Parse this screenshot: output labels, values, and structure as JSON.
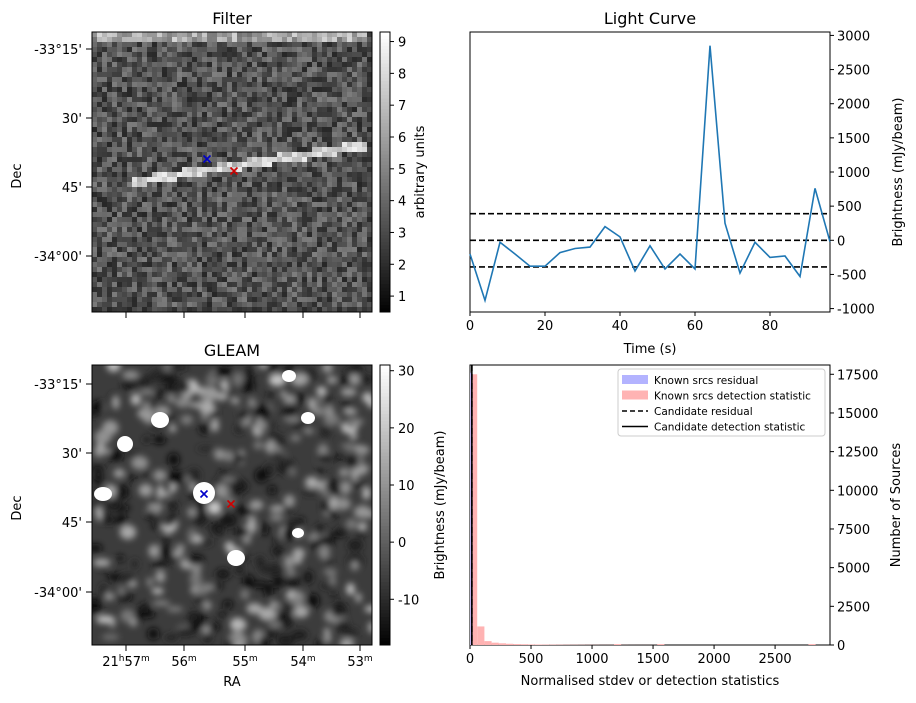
{
  "chart_data": [
    {
      "type": "heatmap",
      "title": "Filter",
      "ylabel": "Dec",
      "y_ticks": [
        "-33°15'",
        "30'",
        "45'",
        "-34°00'"
      ],
      "colorbar": {
        "label": "arbitrary units",
        "ticks": [
          "1",
          "2",
          "3",
          "4",
          "5",
          "6",
          "7",
          "8",
          "9"
        ],
        "range": [
          0.5,
          9.3
        ]
      },
      "markers": [
        {
          "symbol": "x",
          "color": "#0000c8"
        },
        {
          "symbol": "x",
          "color": "#d00000"
        }
      ]
    },
    {
      "type": "line",
      "title": "Light Curve",
      "xlabel": "Time (s)",
      "ylabel": "Brightness (mJy/beam)",
      "xlim": [
        0,
        96
      ],
      "ylim": [
        -1050,
        3050
      ],
      "x_ticks": [
        "0",
        "20",
        "40",
        "60",
        "80"
      ],
      "y_ticks": [
        "3000",
        "2500",
        "2000",
        "1500",
        "1000",
        "500",
        "0",
        "-500",
        "-1000"
      ],
      "series": [
        {
          "x": [
            0,
            4,
            8,
            12,
            16,
            20,
            24,
            28,
            32,
            36,
            40,
            44,
            48,
            52,
            56,
            60,
            64,
            68,
            72,
            76,
            80,
            84,
            88,
            92,
            96
          ],
          "y": [
            -200,
            -880,
            -30,
            -200,
            -380,
            -380,
            -180,
            -120,
            -100,
            200,
            50,
            -450,
            -80,
            -420,
            -200,
            -420,
            2850,
            250,
            -480,
            -30,
            -250,
            -230,
            -530,
            760,
            -20
          ],
          "color": "#1f77b4"
        }
      ],
      "hlines": [
        390,
        0,
        -390
      ]
    },
    {
      "type": "heatmap",
      "title": "GLEAM",
      "xlabel": "RA",
      "ylabel": "Dec",
      "y_ticks": [
        "-33°15'",
        "30'",
        "45'",
        "-34°00'"
      ],
      "x_ticks": [
        "21h57m",
        "56m",
        "55m",
        "54m",
        "53m"
      ],
      "colorbar": {
        "label": "Brightness (mJy/beam)",
        "ticks": [
          "30",
          "20",
          "10",
          "0",
          "-10"
        ],
        "range": [
          -18,
          31
        ]
      },
      "markers": [
        {
          "symbol": "x",
          "color": "#0000c8"
        },
        {
          "symbol": "x",
          "color": "#d00000"
        }
      ]
    },
    {
      "type": "bar",
      "xlabel": "Normalised stdev or detection statistics",
      "ylabel": "Number of Sources",
      "xlim": [
        0,
        2950
      ],
      "ylim": [
        0,
        18100
      ],
      "x_ticks": [
        "0",
        "500",
        "1000",
        "1500",
        "2000",
        "2500"
      ],
      "y_ticks": [
        "0",
        "2500",
        "5000",
        "7500",
        "10000",
        "12500",
        "15000",
        "17500"
      ],
      "legend": {
        "placement": "top-right",
        "entries": [
          {
            "label": "Known srcs residual",
            "style": "patch",
            "color": "#b3b3ff"
          },
          {
            "label": "Known srcs detection statistic",
            "style": "patch",
            "color": "#ffb3b3"
          },
          {
            "label": "Candidate residual",
            "style": "dashed",
            "color": "#000000"
          },
          {
            "label": "Candidate detection statistic",
            "style": "solid",
            "color": "#000000"
          }
        ]
      },
      "series": [
        {
          "name": "Known srcs detection statistic",
          "color": "#ffb3b3",
          "bin_width": 59,
          "bins": [
            0,
            59,
            118,
            177,
            236,
            295,
            354,
            413,
            472,
            531,
            590,
            649,
            708,
            767,
            826,
            885,
            944,
            1003,
            1062,
            1121,
            1180,
            1239,
            1298,
            1357,
            1416,
            1475,
            1534,
            2773
          ],
          "values": [
            17500,
            1200,
            250,
            150,
            110,
            80,
            60,
            50,
            40,
            35,
            30,
            28,
            25,
            22,
            20,
            18,
            15,
            12,
            10,
            10,
            60,
            8,
            6,
            5,
            5,
            5,
            60,
            60
          ]
        },
        {
          "name": "Known srcs residual",
          "color": "#b3b3ff",
          "bin_width": 15,
          "bins": [
            0
          ],
          "values": [
            17600
          ]
        }
      ],
      "vlines": [
        {
          "x": 15,
          "style": "dashed"
        },
        {
          "x": 15,
          "style": "solid"
        }
      ]
    }
  ]
}
